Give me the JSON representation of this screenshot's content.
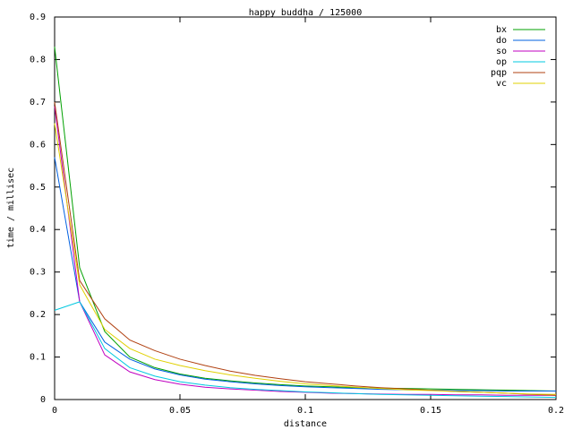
{
  "chart_data": {
    "type": "line",
    "title": "happy buddha / 125000",
    "x_label": "distance",
    "y_label": "time / millisec",
    "x": [
      0,
      0.01,
      0.02,
      0.03,
      0.04,
      0.05,
      0.06,
      0.07,
      0.08,
      0.09,
      0.1,
      0.11,
      0.12,
      0.13,
      0.14,
      0.15,
      0.16,
      0.17,
      0.18,
      0.19,
      0.2
    ],
    "series": [
      {
        "name": "bx",
        "color": "#00a000",
        "values": [
          0.83,
          0.31,
          0.16,
          0.1,
          0.075,
          0.06,
          0.05,
          0.044,
          0.039,
          0.035,
          0.032,
          0.03,
          0.028,
          0.027,
          0.026,
          0.025,
          0.024,
          0.023,
          0.022,
          0.021,
          0.02
        ]
      },
      {
        "name": "do",
        "color": "#0060e0",
        "values": [
          0.57,
          0.23,
          0.135,
          0.095,
          0.072,
          0.058,
          0.048,
          0.042,
          0.037,
          0.033,
          0.03,
          0.028,
          0.026,
          0.024,
          0.023,
          0.022,
          0.021,
          0.021,
          0.02,
          0.02,
          0.02
        ]
      },
      {
        "name": "so",
        "color": "#c000c0",
        "values": [
          0.69,
          0.23,
          0.105,
          0.065,
          0.047,
          0.036,
          0.029,
          0.025,
          0.022,
          0.019,
          0.017,
          0.015,
          0.014,
          0.013,
          0.012,
          0.012,
          0.011,
          0.011,
          0.01,
          0.01,
          0.01
        ]
      },
      {
        "name": "op",
        "color": "#00c8e0",
        "values": [
          0.21,
          0.23,
          0.12,
          0.075,
          0.055,
          0.042,
          0.034,
          0.028,
          0.024,
          0.021,
          0.018,
          0.016,
          0.014,
          0.012,
          0.011,
          0.01,
          0.009,
          0.008,
          0.007,
          0.006,
          0.005
        ]
      },
      {
        "name": "pqp",
        "color": "#b04010",
        "values": [
          0.7,
          0.28,
          0.19,
          0.14,
          0.115,
          0.095,
          0.08,
          0.067,
          0.057,
          0.049,
          0.042,
          0.037,
          0.032,
          0.028,
          0.025,
          0.022,
          0.019,
          0.017,
          0.015,
          0.012,
          0.01
        ]
      },
      {
        "name": "vc",
        "color": "#e0d000",
        "values": [
          0.65,
          0.27,
          0.165,
          0.12,
          0.095,
          0.08,
          0.068,
          0.058,
          0.05,
          0.043,
          0.037,
          0.033,
          0.029,
          0.026,
          0.023,
          0.021,
          0.019,
          0.017,
          0.015,
          0.013,
          0.012
        ]
      }
    ],
    "xlim": [
      0,
      0.2
    ],
    "xticks": [
      0,
      0.05,
      0.1,
      0.15,
      0.2
    ],
    "ylim": [
      0,
      0.9
    ],
    "yticks": [
      0,
      0.1,
      0.2,
      0.3,
      0.4,
      0.5,
      0.6,
      0.7,
      0.8,
      0.9
    ],
    "grid": false,
    "legend": "top right"
  }
}
